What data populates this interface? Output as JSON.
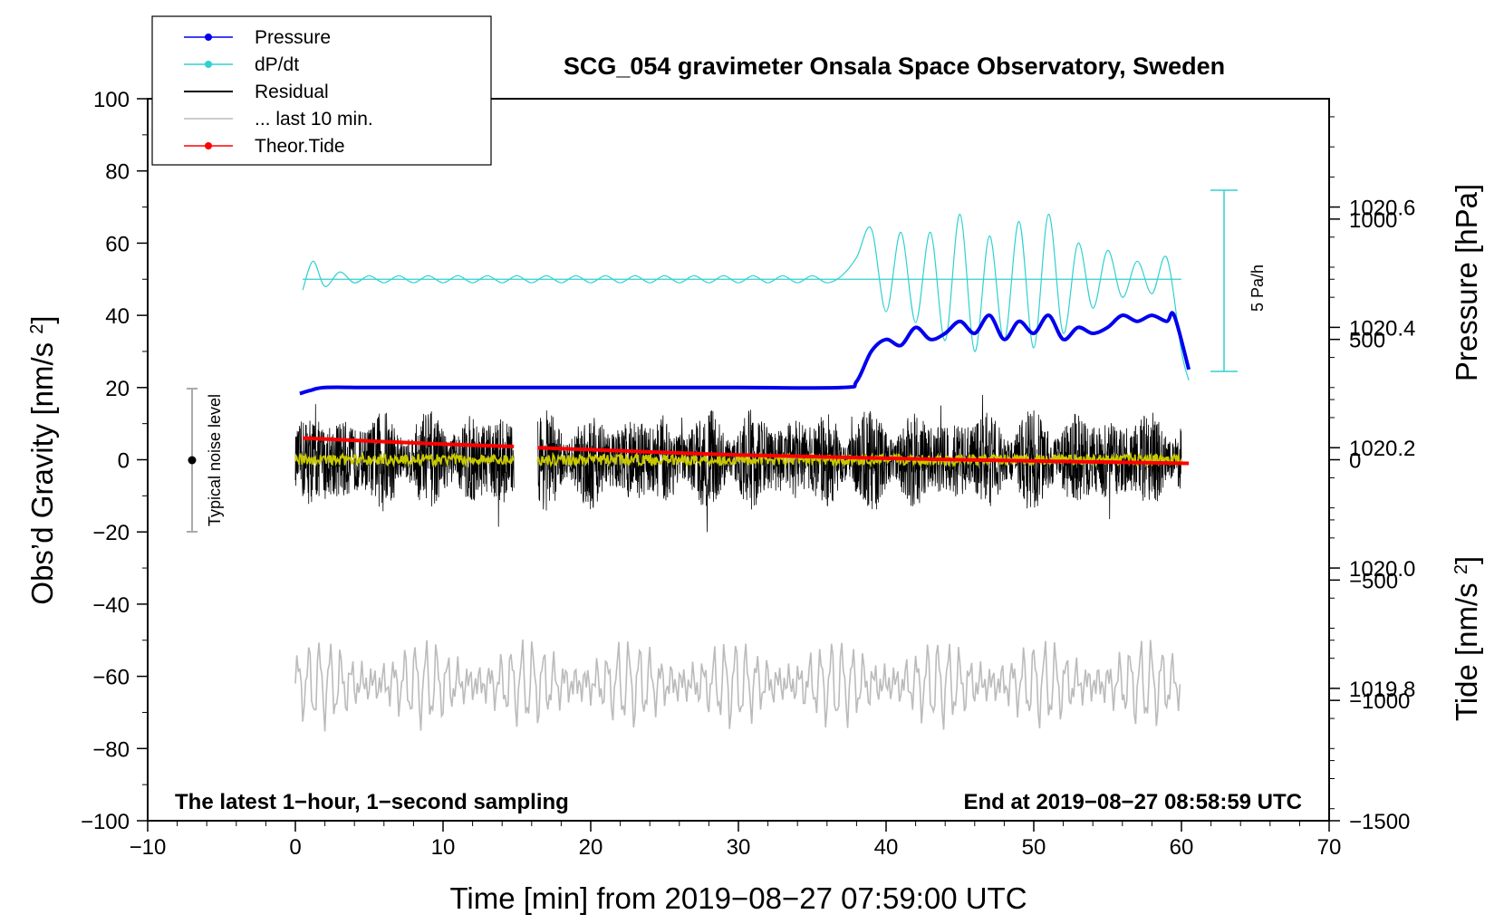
{
  "chart_data": {
    "type": "line",
    "title": "SCG_054 gravimeter Onsala Space Observatory, Sweden",
    "xlabel": "Time [min] from 2019−08−27 07:59:00 UTC",
    "ylabel": "Obs’d Gravity [nm/s²]",
    "ylabel_right_top": "Pressure [hPa]",
    "ylabel_right_bottom": "Tide [nm/s²]",
    "xlim": [
      -10,
      70
    ],
    "ylim": [
      -100,
      100
    ],
    "pressure_lim": [
      1019.58,
      1020.78
    ],
    "tide_lim": [
      -1500,
      1500
    ],
    "x_ticks": [
      "−10",
      "0",
      "10",
      "20",
      "30",
      "40",
      "50",
      "60",
      "70"
    ],
    "y_ticks": [
      "−100",
      "−80",
      "−60",
      "−40",
      "−20",
      "0",
      "20",
      "40",
      "60",
      "80",
      "100"
    ],
    "pressure_ticks": [
      "1019.8",
      "1020.0",
      "1020.2",
      "1020.4",
      "1020.6"
    ],
    "tide_ticks": [
      "−1500",
      "−1000",
      "−500",
      "0",
      "500",
      "1000"
    ],
    "note_left": "The latest 1−hour, 1−second sampling",
    "note_right": "End at 2019−08−27 08:58:59 UTC",
    "noise_label": "Typical noise level",
    "noise_bar": {
      "x": -7,
      "center": 0,
      "half_range": 20
    },
    "dpdt_scale_label": "5 Pa/h",
    "legend": [
      {
        "label": "Pressure",
        "color": "#0000ee",
        "marker": true
      },
      {
        "label": "dP/dt",
        "color": "#30d0d0",
        "marker": true
      },
      {
        "label": "Residual",
        "color": "#000000",
        "marker": false
      },
      {
        "label": "... last 10 min.",
        "color": "#bbbbbb",
        "marker": false
      },
      {
        "label": "Theor.Tide",
        "color": "#ff0000",
        "marker": true
      }
    ],
    "series": [
      {
        "name": "Pressure",
        "unit": "hPa",
        "color": "#0000ee",
        "x": [
          0.3,
          1,
          2,
          5,
          10,
          20,
          30,
          37,
          38,
          39,
          40,
          41,
          42,
          43,
          44,
          45,
          46,
          47,
          48,
          49,
          50,
          51,
          52,
          53,
          54,
          55,
          56,
          57,
          58,
          59,
          59.5,
          60.5
        ],
        "values": [
          1020.29,
          1020.295,
          1020.3,
          1020.3,
          1020.3,
          1020.3,
          1020.3,
          1020.3,
          1020.31,
          1020.36,
          1020.38,
          1020.37,
          1020.4,
          1020.38,
          1020.39,
          1020.41,
          1020.39,
          1020.42,
          1020.38,
          1020.41,
          1020.39,
          1020.42,
          1020.38,
          1020.4,
          1020.39,
          1020.4,
          1020.42,
          1020.41,
          1020.42,
          1020.41,
          1020.42,
          1020.33
        ]
      },
      {
        "name": "dP/dt",
        "unit": "nm/s² equivalent",
        "color": "#30d0d0",
        "baseline": 50,
        "x": [
          0.5,
          1.2,
          2,
          3,
          4,
          5,
          6,
          7,
          8,
          9,
          10,
          11,
          12,
          13,
          14,
          15,
          16,
          17,
          18,
          19,
          20,
          21,
          22,
          23,
          24,
          25,
          26,
          27,
          28,
          29,
          30,
          31,
          32,
          33,
          34,
          35,
          36,
          37,
          38,
          39,
          40,
          41,
          42,
          43,
          44,
          45,
          46,
          47,
          48,
          49,
          50,
          51,
          52,
          53,
          54,
          55,
          56,
          57,
          58,
          59,
          60,
          60.5
        ],
        "values": [
          47,
          55,
          48,
          52,
          49,
          51,
          49,
          51,
          49,
          51,
          49,
          51,
          49,
          51,
          49,
          51,
          49,
          51,
          49,
          51,
          49,
          51,
          49,
          51,
          49,
          51,
          49,
          51,
          49,
          51,
          49,
          51,
          49,
          51,
          49,
          51,
          49,
          51,
          56,
          64,
          41,
          63,
          38,
          63,
          33,
          68,
          30,
          62,
          33,
          66,
          31,
          68,
          35,
          60,
          42,
          58,
          45,
          55,
          46,
          56,
          30,
          22
        ]
      },
      {
        "name": "Residual",
        "color": "#000000",
        "x_range": [
          0,
          60
        ],
        "gap": [
          14.8,
          16.4
        ],
        "amplitude_typical": 10,
        "amplitude_max": 23
      },
      {
        "name": "Residual smoothed",
        "color": "#c8c800",
        "x_range": [
          0,
          60
        ],
        "amplitude_typical": 1.5
      },
      {
        "name": "... last 10 min.",
        "color": "#bbbbbb",
        "x_range": [
          0,
          60
        ],
        "center": -62,
        "amplitude_typical": 10
      },
      {
        "name": "Theor.Tide",
        "unit": "nm/s²",
        "color": "#ff0000",
        "x": [
          0.5,
          10,
          14.8,
          16.4,
          30,
          45,
          60.5
        ],
        "values": [
          90,
          65,
          55,
          50,
          20,
          0,
          -15
        ]
      }
    ]
  }
}
